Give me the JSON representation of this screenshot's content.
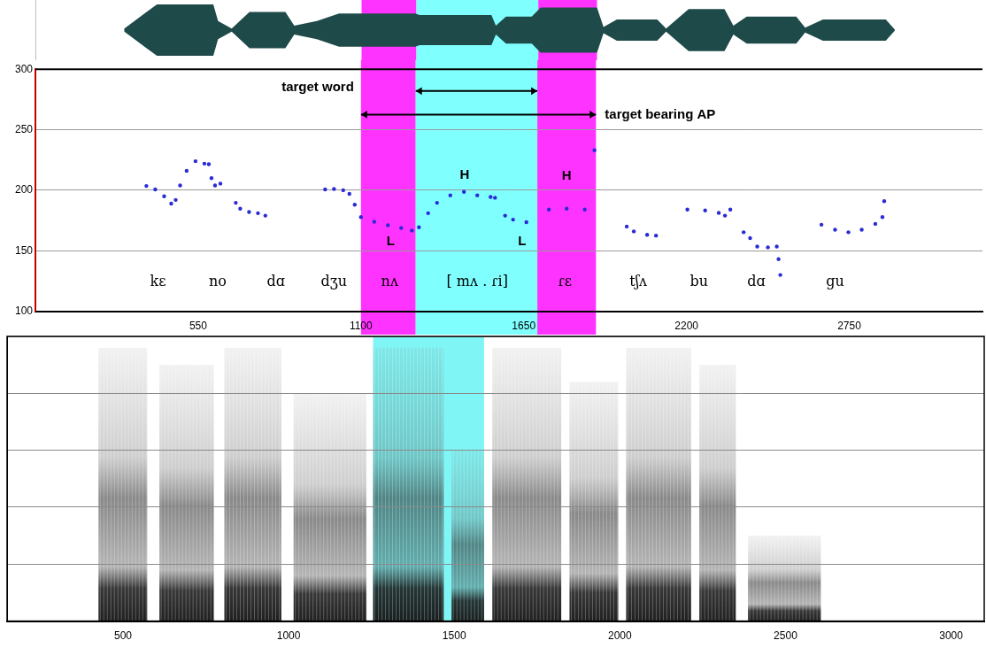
{
  "chart_data": [
    {
      "type": "waveform",
      "x": [
        300,
        375,
        410,
        600,
        616,
        662,
        722,
        843,
        873,
        949,
        1024,
        1085,
        1100,
        1281,
        1296,
        1538,
        1553,
        1587,
        1674,
        1704,
        1894,
        1916,
        1961,
        2097,
        2127,
        2203,
        2324,
        2354,
        2399,
        2566,
        2596,
        2656,
        2868,
        2898
      ],
      "values": [
        0.05,
        0.6,
        0.85,
        0.85,
        0.3,
        0.05,
        0.6,
        0.6,
        0.15,
        0.3,
        0.55,
        0.55,
        0.55,
        0.55,
        0.5,
        0.5,
        0.15,
        0.45,
        0.45,
        0.75,
        0.75,
        0.1,
        0.35,
        0.35,
        0.05,
        0.7,
        0.7,
        0.15,
        0.45,
        0.45,
        0.08,
        0.35,
        0.35,
        0.02
      ],
      "color": "#1f4a4a",
      "xlim": [
        0,
        3200
      ],
      "ylim": [
        -1,
        1
      ],
      "tick_labels": false,
      "highlights": [
        {
          "start": 1100,
          "end": 1285,
          "color": "#ff33ff"
        },
        {
          "start": 1285,
          "end": 1696,
          "color": "#80ffff"
        },
        {
          "start": 1696,
          "end": 1894,
          "color": "#ff33ff"
        }
      ]
    },
    {
      "type": "scatter",
      "x": [
        375,
        405,
        435,
        459,
        474,
        489,
        511,
        541,
        571,
        586,
        595,
        607,
        625,
        677,
        692,
        722,
        752,
        777,
        979,
        1009,
        1040,
        1061,
        1079,
        1100,
        1145,
        1191,
        1236,
        1272,
        1296,
        1327,
        1357,
        1402,
        1448,
        1493,
        1538,
        1553,
        1587,
        1614,
        1659,
        1735,
        1795,
        1856,
        1889,
        1998,
        2022,
        2067,
        2097,
        2203,
        2263,
        2309,
        2330,
        2348,
        2393,
        2415,
        2439,
        2475,
        2505,
        2511,
        2517,
        2656,
        2702,
        2747,
        2792,
        2838,
        2862,
        2868
      ],
      "values": [
        203.5,
        200.7,
        195,
        189,
        192,
        204,
        216,
        224,
        222,
        221.5,
        210,
        204,
        205.5,
        189.6,
        184.7,
        182,
        181,
        179,
        200.7,
        201,
        200,
        197,
        188,
        177.8,
        174,
        171,
        168.8,
        166.7,
        169.4,
        181,
        189.6,
        195.8,
        198.6,
        195.8,
        194.4,
        193.8,
        179,
        175.7,
        173.6,
        184,
        184.7,
        184,
        233,
        170,
        166,
        163.2,
        162.5,
        184,
        183.3,
        181.3,
        179,
        184,
        165.3,
        160.4,
        153.5,
        152.8,
        153.5,
        143,
        130,
        171.5,
        167.4,
        165.3,
        167.4,
        172.2,
        177.8,
        191
      ],
      "color": "#2b2bd6",
      "marker": "circle",
      "xlim": [
        0,
        3200
      ],
      "ylim": [
        100,
        300
      ],
      "xticks": [
        550,
        1100,
        1650,
        2200,
        2750
      ],
      "yticks": [
        100,
        150,
        200,
        250,
        300
      ],
      "grid": true,
      "highlights": [
        {
          "start": 1100,
          "end": 1285,
          "color": "#ff33ff"
        },
        {
          "start": 1285,
          "end": 1696,
          "color": "#80ffff"
        },
        {
          "start": 1696,
          "end": 1894,
          "color": "#ff33ff"
        }
      ],
      "arrows": [
        {
          "text": "target word",
          "from": 1285,
          "to": 1696,
          "y": 282
        },
        {
          "text": "target bearing AP",
          "from": 1100,
          "to": 1894,
          "y": 262.5
        }
      ],
      "tone_labels": [
        {
          "text": "L",
          "x": 1200,
          "y": 157.6
        },
        {
          "text": "H",
          "x": 1450,
          "y": 212.5
        },
        {
          "text": "L",
          "x": 1644,
          "y": 157.6
        },
        {
          "text": "H",
          "x": 1795,
          "y": 211.8
        }
      ],
      "syllable_y": 124,
      "syllables": [
        {
          "text": "kɛ",
          "x": 414
        },
        {
          "text": "no",
          "x": 616
        },
        {
          "text": "dɑ",
          "x": 813
        },
        {
          "text": "dʒu",
          "x": 1009
        },
        {
          "text": "nʌ",
          "x": 1197
        },
        {
          "text": "[ mʌ . ɾi]",
          "x": 1493
        },
        {
          "text": "ɾɛ",
          "x": 1789
        },
        {
          "text": "tʃʌ",
          "x": 2037
        },
        {
          "text": "bu",
          "x": 2242
        },
        {
          "text": "dɑ",
          "x": 2436
        },
        {
          "text": "gu",
          "x": 2702
        }
      ]
    },
    {
      "type": "spectrogram",
      "xlim": [
        150,
        3100
      ],
      "ylim": [
        0,
        5000
      ],
      "xticks": [
        500,
        1000,
        1500,
        2000,
        2500,
        3000
      ],
      "yticks": [
        0,
        1000,
        2000,
        3000,
        4000,
        5000
      ],
      "grid": true,
      "tick_labels": "x",
      "color": "#1a1a1a",
      "highlights": [
        {
          "start": 1255,
          "end": 1590,
          "color": "#7ff5f5"
        }
      ],
      "segments": [
        {
          "start": 426,
          "end": 573,
          "top": 4800
        },
        {
          "start": 610,
          "end": 774,
          "top": 4500
        },
        {
          "start": 806,
          "end": 978,
          "top": 4800
        },
        {
          "start": 1015,
          "end": 1235,
          "top": 4000
        },
        {
          "start": 1255,
          "end": 1468,
          "top": 4800
        },
        {
          "start": 1492,
          "end": 1590,
          "top": 3000
        },
        {
          "start": 1615,
          "end": 1823,
          "top": 4800
        },
        {
          "start": 1848,
          "end": 1995,
          "top": 4200
        },
        {
          "start": 2019,
          "end": 2215,
          "top": 4800
        },
        {
          "start": 2240,
          "end": 2350,
          "top": 4500
        },
        {
          "start": 2387,
          "end": 2607,
          "top": 1500
        }
      ]
    }
  ]
}
